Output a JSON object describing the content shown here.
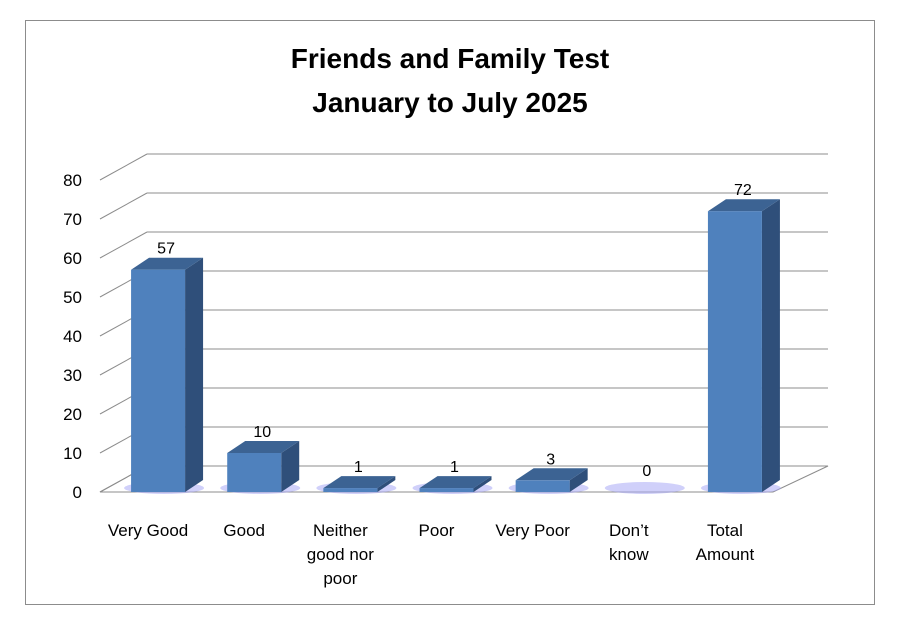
{
  "chart_data": {
    "type": "bar",
    "title": [
      "Friends and Family Test",
      "January to July 2025"
    ],
    "categories": [
      [
        "Very Good"
      ],
      [
        "Good"
      ],
      [
        "Neither",
        "good nor",
        "poor"
      ],
      [
        "Poor"
      ],
      [
        "Very Poor"
      ],
      [
        "Don’t",
        "know"
      ],
      [
        "Total",
        "Amount"
      ]
    ],
    "values": [
      57,
      10,
      1,
      1,
      3,
      0,
      72
    ],
    "data_labels": [
      "57",
      "10",
      "1",
      "1",
      "3",
      "0",
      "72"
    ],
    "yticks": [
      "0",
      "10",
      "20",
      "30",
      "40",
      "50",
      "60",
      "70",
      "80"
    ],
    "ylim": [
      0,
      80
    ],
    "grid": true,
    "three_d": true,
    "bar_color": "#4f81bd",
    "bar_side_color": "#2f4f7a",
    "bar_top_color": "#3c6393"
  }
}
